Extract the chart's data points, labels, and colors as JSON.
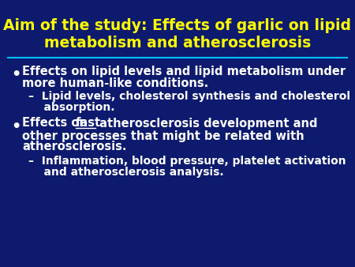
{
  "bg_color": "#0d1a6e",
  "title_color": "#ffff00",
  "title_line1": "Aim of the study: Effects of garlic on lipid",
  "title_line2": "metabolism and atherosclerosis",
  "divider_color": "#00bfff",
  "bullet_color": "#ffffff",
  "bullet1_line1": "Effects on lipid levels and lipid metabolism under",
  "bullet1_line2": "more human-like conditions.",
  "sub1_line1": "–  Lipid levels, cholesterol synthesis and cholesterol",
  "sub1_line2": "    absorption.",
  "bullet2_line1_pre": "Effects on ",
  "bullet2_fast": "fast",
  "bullet2_line1_post": " atherosclerosis development and",
  "bullet2_line2": "other processes that might be related with",
  "bullet2_line3": "atherosclerosis.",
  "sub2_line1": "–  Inflammation, blood pressure, platelet activation",
  "sub2_line2": "    and atherosclerosis analysis.",
  "title_fontsize": 13.5,
  "body_fontsize": 10.5,
  "sub_fontsize": 10.0,
  "bullet_fontsize": 14
}
